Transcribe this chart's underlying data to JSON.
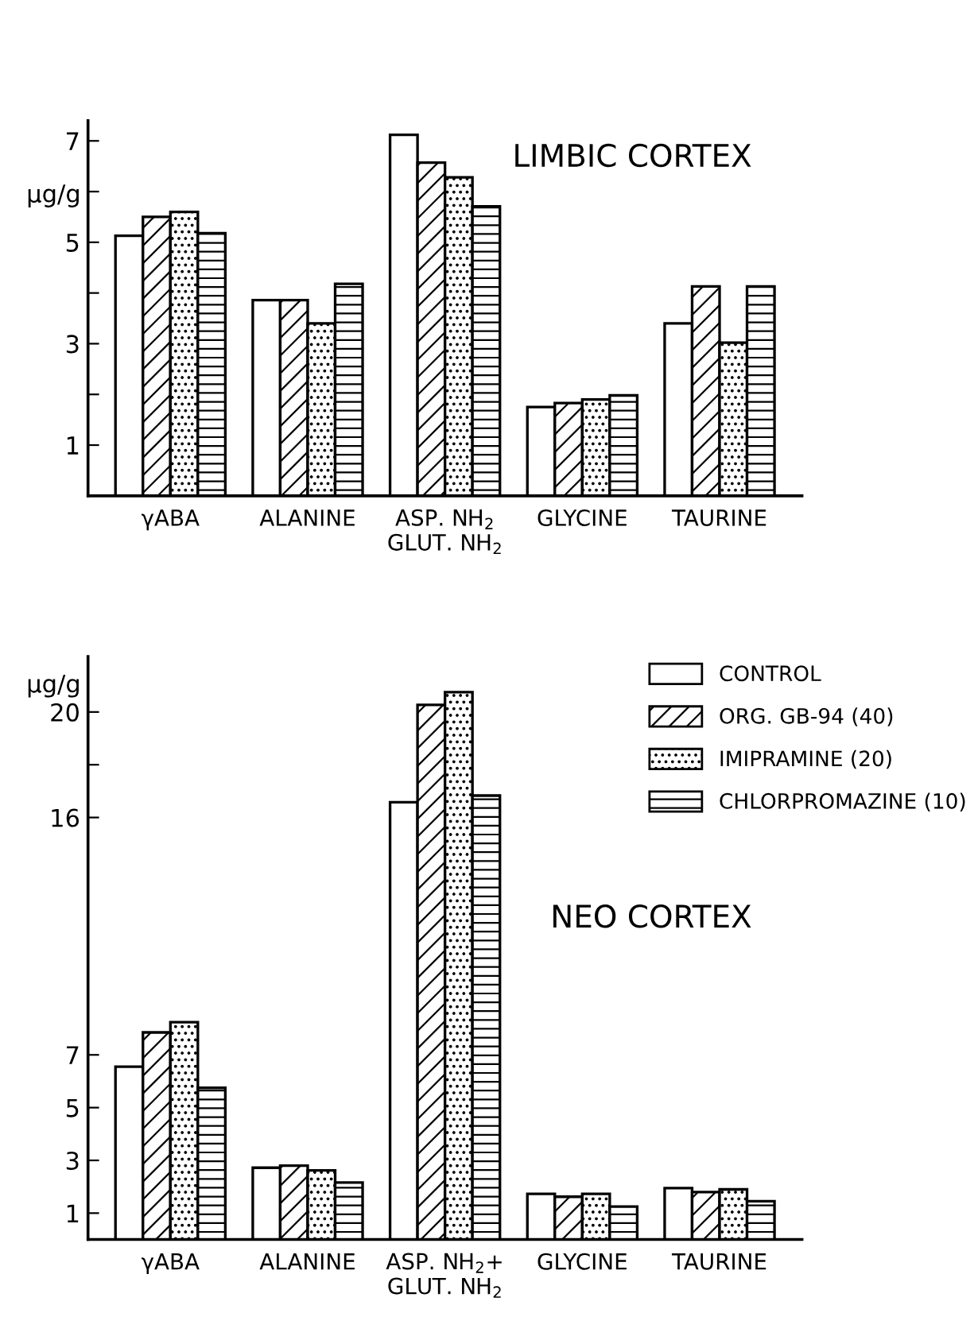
{
  "chart_data": [
    {
      "type": "bar",
      "title": "LIMBIC CORTEX",
      "ylabel": "μg/g",
      "categories": [
        "γABA",
        "ALANINE",
        "ASP. NH$_{2}$\nGLUT. NH$_{2}$",
        "GLYCINE",
        "TAURINE"
      ],
      "ylim": [
        0,
        7.4
      ],
      "yticks": [
        1,
        {
          "value": 2,
          "label": null
        },
        3,
        {
          "value": 4,
          "label": null
        },
        5,
        {
          "value": 6,
          "label": null
        },
        7
      ],
      "series": [
        {
          "color": "#ffffff",
          "values": [
            5.13,
            3.86,
            7.12,
            1.75,
            3.4
          ]
        },
        {
          "color": "#000000",
          "values": [
            5.5,
            3.86,
            6.57,
            1.83,
            4.13
          ]
        },
        {
          "color": "#000000",
          "values": [
            5.6,
            3.4,
            6.28,
            1.9,
            3.02
          ]
        },
        {
          "color": "#000000",
          "values": [
            5.18,
            4.18,
            5.71,
            1.98,
            4.13
          ]
        }
      ]
    },
    {
      "type": "bar",
      "title": "NEO CORTEX",
      "ylabel": "μg/g",
      "legend": "top right",
      "categories": [
        "γABA",
        "ALANINE",
        "ASP. NH$_{2}$+\nGLUT. NH$_{2}$",
        "GLYCINE",
        "TAURINE"
      ],
      "ylim": [
        0,
        22.1
      ],
      "yticks": [
        1,
        3,
        5,
        7,
        16,
        {
          "value": 18,
          "label": null
        },
        20
      ],
      "series": [
        {
          "name": "CONTROL",
          "color": "#ffffff",
          "values": [
            6.55,
            2.72,
            16.58,
            1.73,
            1.95
          ]
        },
        {
          "name": "ORG. GB-94 (40)",
          "color": "#000000",
          "values": [
            7.85,
            2.8,
            20.27,
            1.62,
            1.8
          ]
        },
        {
          "name": "IMIPRAMINE (20)",
          "color": "#000000",
          "values": [
            8.24,
            2.62,
            20.75,
            1.73,
            1.9
          ]
        },
        {
          "name": "CHLORPROMAZINE (10)",
          "color": "#000000",
          "values": [
            5.75,
            2.16,
            16.83,
            1.25,
            1.45
          ]
        }
      ]
    }
  ]
}
